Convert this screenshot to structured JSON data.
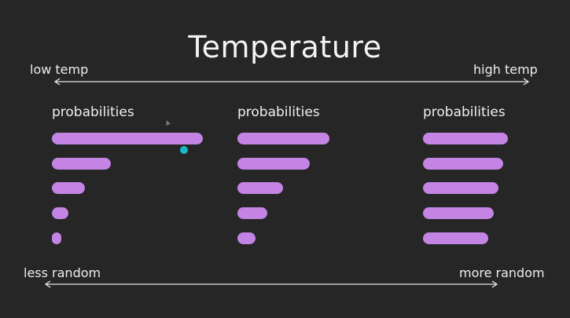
{
  "title": "Temperature",
  "top_axis": {
    "left": "low temp",
    "right": "high temp"
  },
  "bottom_axis": {
    "left": "less random",
    "right": "more random"
  },
  "colors": {
    "background": "#262626",
    "bar": "#c384e4",
    "text": "#f2f2f2",
    "dot": "#16b8c8"
  },
  "chart_data": [
    {
      "type": "bar",
      "title": "probabilities",
      "values": [
        1.0,
        0.39,
        0.22,
        0.11,
        0.06
      ]
    },
    {
      "type": "bar",
      "title": "probabilities",
      "values": [
        0.61,
        0.48,
        0.3,
        0.2,
        0.12
      ]
    },
    {
      "type": "bar",
      "title": "probabilities",
      "values": [
        0.56,
        0.53,
        0.5,
        0.47,
        0.43
      ]
    }
  ]
}
